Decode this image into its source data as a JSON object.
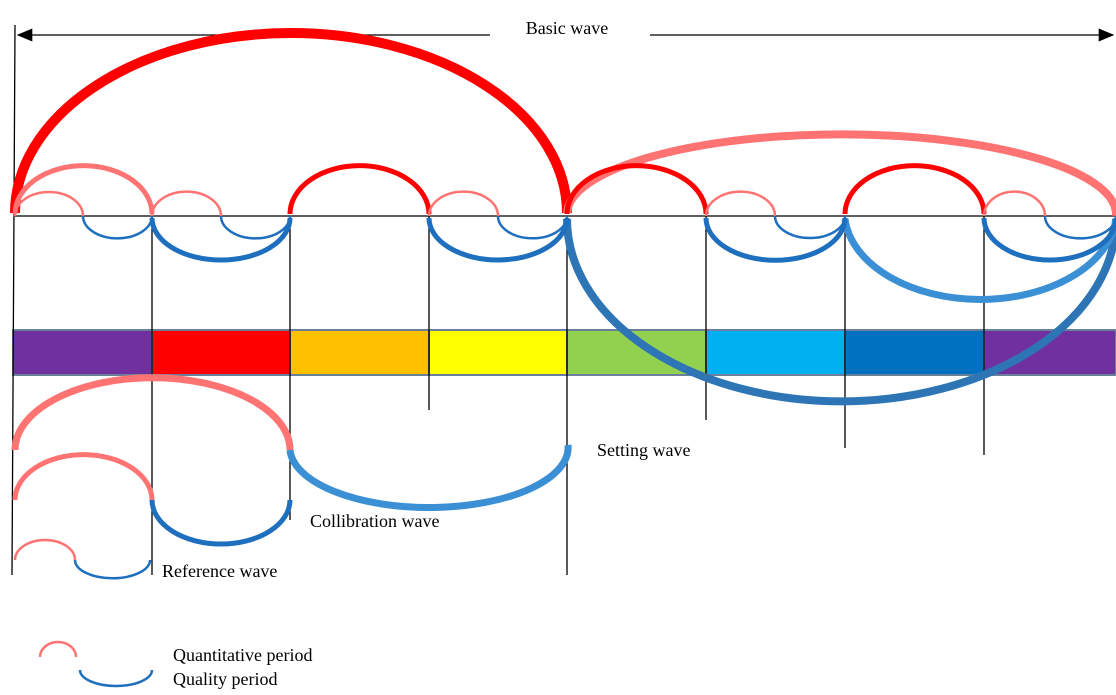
{
  "labels": {
    "basic": "Basic wave",
    "setting": "Setting wave",
    "calibration": "Collibration wave",
    "reference": "Reference wave"
  },
  "legend": {
    "quantitative": "Quantitative period",
    "quality": "Quality period"
  }
}
